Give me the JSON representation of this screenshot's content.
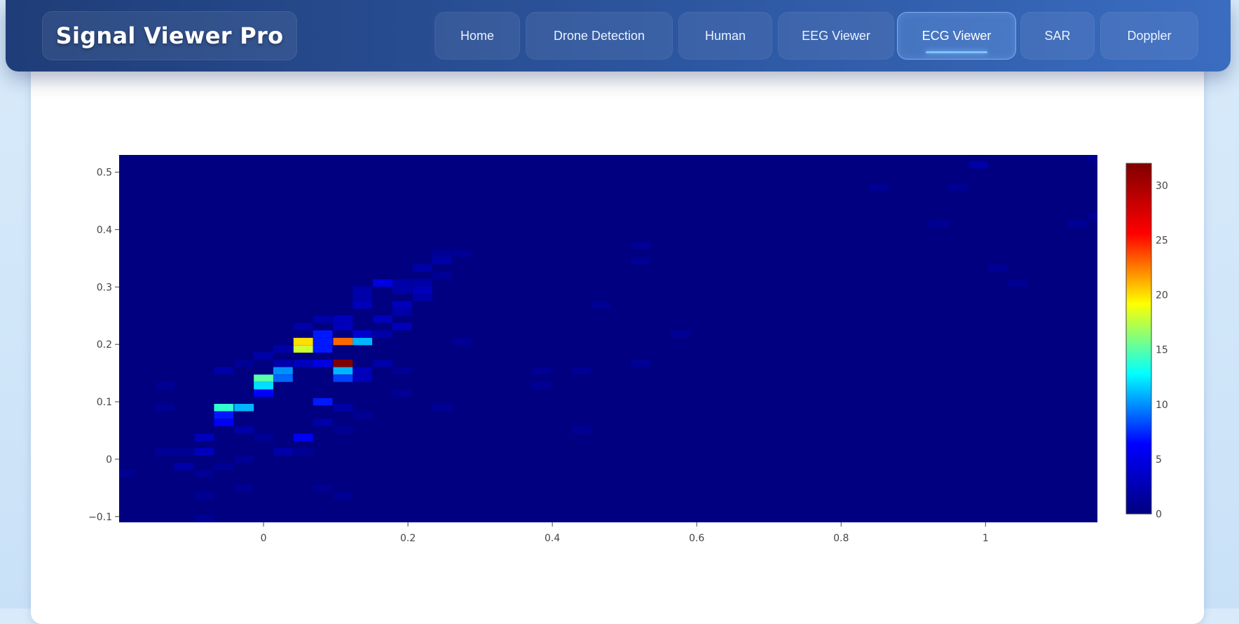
{
  "app": {
    "title": "Signal Viewer Pro"
  },
  "nav": {
    "tabs": [
      {
        "label": "Home",
        "active": false
      },
      {
        "label": "Drone Detection",
        "active": false
      },
      {
        "label": "Human",
        "active": false
      },
      {
        "label": "EEG Viewer",
        "active": false
      },
      {
        "label": "ECG Viewer",
        "active": true
      },
      {
        "label": "SAR",
        "active": false
      },
      {
        "label": "Doppler",
        "active": false
      }
    ]
  },
  "colors": {
    "nav_start": "#1f3d78",
    "nav_end": "#3a6cc0",
    "heatmap_background": "#000080",
    "colorscale": [
      "#000080",
      "#0000ff",
      "#00ffff",
      "#ffff00",
      "#ff0000",
      "#800000"
    ]
  },
  "chart_data": {
    "type": "heatmap",
    "title": "",
    "xlabel": "",
    "ylabel": "",
    "xlim": [
      -0.2,
      1.155
    ],
    "ylim": [
      -0.11,
      0.53
    ],
    "bin_width_x": 0.027,
    "bin_height_y": 0.0128,
    "x_ticks": [
      "0",
      "0.2",
      "0.4",
      "0.6",
      "0.8",
      "1"
    ],
    "y_ticks": [
      "−0.1",
      "0",
      "0.1",
      "0.2",
      "0.3",
      "0.4",
      "0.5"
    ],
    "colorbar": {
      "min": 0,
      "max": 32,
      "ticks": [
        "0",
        "5",
        "10",
        "15",
        "20",
        "25",
        "30"
      ]
    },
    "cells": [
      {
        "x": 0.055,
        "y": 0.205,
        "v": 20
      },
      {
        "x": 0.055,
        "y": 0.192,
        "v": 18
      },
      {
        "x": 0.11,
        "y": 0.205,
        "v": 23
      },
      {
        "x": 0.137,
        "y": 0.205,
        "v": 11
      },
      {
        "x": 0.11,
        "y": 0.167,
        "v": 32
      },
      {
        "x": 0.11,
        "y": 0.154,
        "v": 11
      },
      {
        "x": 0.11,
        "y": 0.141,
        "v": 8
      },
      {
        "x": 0.082,
        "y": 0.205,
        "v": 7
      },
      {
        "x": 0.082,
        "y": 0.192,
        "v": 7
      },
      {
        "x": 0.082,
        "y": 0.218,
        "v": 7
      },
      {
        "x": 0.0,
        "y": 0.141,
        "v": 15
      },
      {
        "x": 0.0,
        "y": 0.128,
        "v": 12
      },
      {
        "x": 0.0,
        "y": 0.115,
        "v": 6
      },
      {
        "x": 0.027,
        "y": 0.154,
        "v": 10
      },
      {
        "x": 0.027,
        "y": 0.141,
        "v": 9
      },
      {
        "x": -0.055,
        "y": 0.09,
        "v": 14
      },
      {
        "x": -0.027,
        "y": 0.09,
        "v": 11
      },
      {
        "x": -0.055,
        "y": 0.077,
        "v": 7
      },
      {
        "x": -0.055,
        "y": 0.064,
        "v": 6
      },
      {
        "x": 0.082,
        "y": 0.1,
        "v": 7
      },
      {
        "x": 0.055,
        "y": 0.038,
        "v": 6
      },
      {
        "x": 0.165,
        "y": 0.307,
        "v": 5
      },
      {
        "x": 0.082,
        "y": 0.167,
        "v": 5
      },
      {
        "x": 0.137,
        "y": 0.218,
        "v": 4
      },
      {
        "x": 0.11,
        "y": 0.231,
        "v": 3
      },
      {
        "x": 0.11,
        "y": 0.244,
        "v": 3
      },
      {
        "x": 0.137,
        "y": 0.269,
        "v": 3
      },
      {
        "x": 0.137,
        "y": 0.282,
        "v": 2
      },
      {
        "x": 0.137,
        "y": 0.295,
        "v": 2
      },
      {
        "x": 0.192,
        "y": 0.269,
        "v": 3
      },
      {
        "x": 0.192,
        "y": 0.295,
        "v": 2
      },
      {
        "x": 0.192,
        "y": 0.307,
        "v": 2
      },
      {
        "x": 0.22,
        "y": 0.295,
        "v": 3
      },
      {
        "x": 0.22,
        "y": 0.282,
        "v": 2
      },
      {
        "x": 0.22,
        "y": 0.307,
        "v": 2
      },
      {
        "x": 0.22,
        "y": 0.333,
        "v": 2
      },
      {
        "x": 0.247,
        "y": 0.346,
        "v": 2
      },
      {
        "x": 0.247,
        "y": 0.32,
        "v": 1
      },
      {
        "x": 0.247,
        "y": 0.359,
        "v": 1
      },
      {
        "x": 0.275,
        "y": 0.359,
        "v": 1
      },
      {
        "x": 0.192,
        "y": 0.256,
        "v": 2
      },
      {
        "x": 0.165,
        "y": 0.244,
        "v": 3
      },
      {
        "x": 0.192,
        "y": 0.231,
        "v": 3
      },
      {
        "x": 0.165,
        "y": 0.218,
        "v": 2
      },
      {
        "x": 0.082,
        "y": 0.244,
        "v": 2
      },
      {
        "x": 0.055,
        "y": 0.231,
        "v": 2
      },
      {
        "x": 0.027,
        "y": 0.192,
        "v": 2
      },
      {
        "x": 0.0,
        "y": 0.18,
        "v": 2
      },
      {
        "x": 0.027,
        "y": 0.167,
        "v": 2
      },
      {
        "x": -0.027,
        "y": 0.167,
        "v": 1
      },
      {
        "x": -0.055,
        "y": 0.154,
        "v": 2
      },
      {
        "x": 0.055,
        "y": 0.167,
        "v": 3
      },
      {
        "x": 0.137,
        "y": 0.141,
        "v": 3
      },
      {
        "x": 0.137,
        "y": 0.154,
        "v": 3
      },
      {
        "x": 0.165,
        "y": 0.167,
        "v": 2
      },
      {
        "x": 0.192,
        "y": 0.154,
        "v": 1
      },
      {
        "x": 0.192,
        "y": 0.115,
        "v": 1
      },
      {
        "x": 0.11,
        "y": 0.09,
        "v": 2
      },
      {
        "x": 0.137,
        "y": 0.077,
        "v": 1
      },
      {
        "x": 0.082,
        "y": 0.064,
        "v": 2
      },
      {
        "x": 0.11,
        "y": 0.051,
        "v": 1
      },
      {
        "x": 0.0,
        "y": 0.038,
        "v": 1
      },
      {
        "x": -0.027,
        "y": 0.051,
        "v": 2
      },
      {
        "x": -0.082,
        "y": 0.038,
        "v": 3
      },
      {
        "x": -0.082,
        "y": 0.013,
        "v": 3
      },
      {
        "x": -0.137,
        "y": 0.013,
        "v": 1
      },
      {
        "x": -0.11,
        "y": 0.013,
        "v": 1
      },
      {
        "x": -0.11,
        "y": -0.013,
        "v": 2
      },
      {
        "x": -0.082,
        "y": -0.025,
        "v": 1
      },
      {
        "x": -0.055,
        "y": -0.013,
        "v": 1
      },
      {
        "x": -0.027,
        "y": 0.0,
        "v": 1
      },
      {
        "x": 0.027,
        "y": 0.013,
        "v": 2
      },
      {
        "x": 0.055,
        "y": 0.013,
        "v": 1
      },
      {
        "x": -0.192,
        "y": -0.025,
        "v": 1
      },
      {
        "x": -0.027,
        "y": -0.051,
        "v": 1
      },
      {
        "x": 0.082,
        "y": -0.051,
        "v": 1
      },
      {
        "x": 0.11,
        "y": -0.064,
        "v": 1
      },
      {
        "x": -0.082,
        "y": -0.064,
        "v": 1
      },
      {
        "x": -0.082,
        "y": -0.103,
        "v": 1
      },
      {
        "x": -0.137,
        "y": 0.128,
        "v": 1
      },
      {
        "x": -0.137,
        "y": 0.09,
        "v": 1
      },
      {
        "x": 0.247,
        "y": 0.09,
        "v": 1
      },
      {
        "x": 0.275,
        "y": 0.205,
        "v": 1
      },
      {
        "x": 0.385,
        "y": 0.154,
        "v": 1
      },
      {
        "x": 0.385,
        "y": 0.128,
        "v": 1
      },
      {
        "x": 0.44,
        "y": 0.154,
        "v": 1
      },
      {
        "x": 0.44,
        "y": 0.051,
        "v": 1
      },
      {
        "x": 0.467,
        "y": 0.269,
        "v": 1
      },
      {
        "x": 0.522,
        "y": 0.372,
        "v": 1
      },
      {
        "x": 0.522,
        "y": 0.346,
        "v": 1
      },
      {
        "x": 0.522,
        "y": 0.167,
        "v": 1
      },
      {
        "x": 0.577,
        "y": 0.218,
        "v": 1
      },
      {
        "x": 0.852,
        "y": 0.474,
        "v": 1
      },
      {
        "x": 0.962,
        "y": 0.474,
        "v": 1
      },
      {
        "x": 0.99,
        "y": 0.513,
        "v": 2
      },
      {
        "x": 0.935,
        "y": 0.41,
        "v": 1
      },
      {
        "x": 1.017,
        "y": 0.333,
        "v": 1
      },
      {
        "x": 1.045,
        "y": 0.307,
        "v": 1
      },
      {
        "x": 1.127,
        "y": 0.41,
        "v": 1
      },
      {
        "x": 1.155,
        "y": 0.423,
        "v": 1
      },
      {
        "x": 1.155,
        "y": 0.526,
        "v": 1
      }
    ]
  }
}
